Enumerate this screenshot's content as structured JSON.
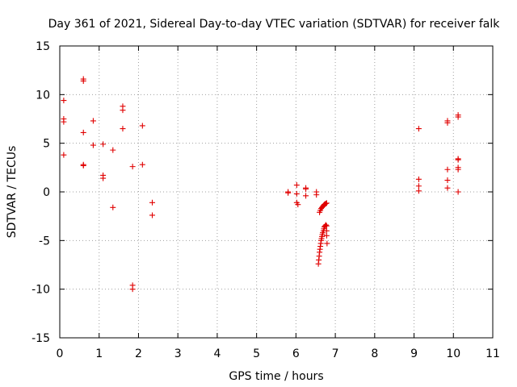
{
  "chart_data": {
    "type": "scatter",
    "title": "Day 361 of 2021, Sidereal Day-to-day VTEC variation (SDTVAR) for receiver falk",
    "xlabel": "GPS time / hours",
    "ylabel": "SDTVAR / TECUs",
    "xlim": [
      0,
      11
    ],
    "ylim": [
      -15,
      15
    ],
    "x_ticks": [
      0,
      1,
      2,
      3,
      4,
      5,
      6,
      7,
      8,
      9,
      10,
      11
    ],
    "x_tick_labels": [
      "0",
      "1",
      "2",
      "3",
      "4",
      "5",
      "6",
      "7",
      "8",
      "9",
      "10",
      "11"
    ],
    "y_ticks": [
      -15,
      -10,
      -5,
      0,
      5,
      10,
      15
    ],
    "y_tick_labels": [
      "-15",
      "-10",
      "-5",
      "0",
      "5",
      "10",
      "15"
    ],
    "grid": true,
    "marker": "plus",
    "series": [
      {
        "name": "SDTVAR",
        "color": "#e00000",
        "points": [
          [
            0.1,
            9.4
          ],
          [
            0.1,
            7.5
          ],
          [
            0.1,
            7.2
          ],
          [
            0.1,
            3.8
          ],
          [
            0.6,
            11.6
          ],
          [
            0.6,
            11.4
          ],
          [
            0.6,
            6.1
          ],
          [
            0.6,
            2.8
          ],
          [
            0.6,
            2.7
          ],
          [
            0.85,
            7.3
          ],
          [
            0.85,
            4.8
          ],
          [
            1.1,
            4.9
          ],
          [
            1.1,
            1.7
          ],
          [
            1.1,
            1.4
          ],
          [
            1.35,
            4.3
          ],
          [
            1.35,
            -1.6
          ],
          [
            1.6,
            8.8
          ],
          [
            1.6,
            8.4
          ],
          [
            1.6,
            6.5
          ],
          [
            1.85,
            2.6
          ],
          [
            1.85,
            -9.6
          ],
          [
            1.85,
            -10.0
          ],
          [
            2.1,
            6.8
          ],
          [
            2.1,
            2.8
          ],
          [
            2.35,
            -1.1
          ],
          [
            2.35,
            -2.4
          ],
          [
            5.8,
            0.0
          ],
          [
            5.8,
            -0.1
          ],
          [
            6.02,
            0.7
          ],
          [
            6.02,
            -0.2
          ],
          [
            6.02,
            -1.1
          ],
          [
            6.05,
            -1.3
          ],
          [
            6.25,
            0.4
          ],
          [
            6.25,
            0.3
          ],
          [
            6.25,
            -0.4
          ],
          [
            6.52,
            0.0
          ],
          [
            6.52,
            -0.3
          ],
          [
            6.57,
            -7.4
          ],
          [
            6.58,
            -7.0
          ],
          [
            6.59,
            -6.6
          ],
          [
            6.6,
            -6.2
          ],
          [
            6.61,
            -5.9
          ],
          [
            6.62,
            -5.6
          ],
          [
            6.63,
            -5.3
          ],
          [
            6.64,
            -5.0
          ],
          [
            6.65,
            -4.8
          ],
          [
            6.66,
            -4.6
          ],
          [
            6.67,
            -4.4
          ],
          [
            6.68,
            -4.2
          ],
          [
            6.7,
            -4.0
          ],
          [
            6.71,
            -3.8
          ],
          [
            6.72,
            -3.6
          ],
          [
            6.74,
            -3.5
          ],
          [
            6.76,
            -3.4
          ],
          [
            6.78,
            -3.5
          ],
          [
            6.78,
            -4.0
          ],
          [
            6.78,
            -4.5
          ],
          [
            6.79,
            -5.3
          ],
          [
            6.6,
            -2.1
          ],
          [
            6.62,
            -1.9
          ],
          [
            6.64,
            -1.7
          ],
          [
            6.66,
            -1.6
          ],
          [
            6.68,
            -1.5
          ],
          [
            6.7,
            -1.4
          ],
          [
            6.72,
            -1.3
          ],
          [
            6.74,
            -1.25
          ],
          [
            6.76,
            -1.2
          ],
          [
            6.78,
            -1.15
          ],
          [
            9.12,
            6.5
          ],
          [
            9.12,
            1.3
          ],
          [
            9.12,
            0.6
          ],
          [
            9.12,
            0.1
          ],
          [
            9.85,
            7.3
          ],
          [
            9.85,
            7.1
          ],
          [
            9.85,
            2.3
          ],
          [
            9.85,
            1.2
          ],
          [
            9.85,
            0.4
          ],
          [
            10.12,
            7.9
          ],
          [
            10.12,
            7.7
          ],
          [
            10.12,
            3.4
          ],
          [
            10.12,
            3.3
          ],
          [
            10.12,
            2.5
          ],
          [
            10.12,
            2.3
          ],
          [
            10.12,
            0.0
          ]
        ]
      }
    ]
  }
}
